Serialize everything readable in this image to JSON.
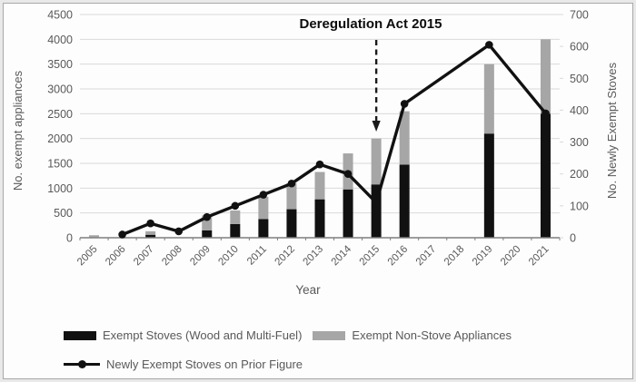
{
  "figure": {
    "annotation_label": "Deregulation Act 2015",
    "x_axis_title": "Year",
    "y_left_axis_title": "No. exempt appliances",
    "y_right_axis_title": "No. Newly Exempt Stoves"
  },
  "legend": {
    "items": [
      {
        "label": "Exempt Stoves (Wood and Multi-Fuel)",
        "swatch": "bar",
        "color": "#111111"
      },
      {
        "label": "Exempt Non-Stove Appliances",
        "swatch": "bar",
        "color": "#a6a6a6"
      },
      {
        "label": "Newly Exempt Stoves on Prior Figure",
        "swatch": "line",
        "color": "#111111"
      }
    ]
  },
  "colors": {
    "stoves_bar": "#111111",
    "nonstove_bar": "#a6a6a6",
    "line": "#111111",
    "gridline": "#d9d9d9",
    "axis_line": "#7f7f7f",
    "tick_text": "#595959",
    "annotation_arrow": "#1a1a1a"
  },
  "chart_data": {
    "type": "bar",
    "subtype": "stacked-bars-with-line-combo",
    "categories": [
      "2005",
      "2006",
      "2007",
      "2008",
      "2009",
      "2010",
      "2011",
      "2012",
      "2013",
      "2014",
      "2015",
      "2016",
      "2017",
      "2018",
      "2019",
      "2020",
      "2021"
    ],
    "series": [
      {
        "name": "Exempt Stoves (Wood and Multi-Fuel)",
        "type": "bar",
        "axis": "left",
        "color": "#111111",
        "values": [
          0,
          0,
          60,
          0,
          150,
          275,
          375,
          575,
          775,
          975,
          1075,
          1475,
          0,
          0,
          2100,
          0,
          2500
        ]
      },
      {
        "name": "Exempt Non-Stove Appliances",
        "type": "bar",
        "axis": "left",
        "stacked_on_previous": true,
        "color": "#a6a6a6",
        "values": [
          50,
          0,
          70,
          0,
          300,
          275,
          450,
          525,
          550,
          725,
          925,
          1075,
          0,
          0,
          1400,
          0,
          1500
        ]
      },
      {
        "name": "Newly Exempt Stoves on Prior Figure",
        "type": "line",
        "axis": "right",
        "color": "#111111",
        "marker": "circle",
        "values": [
          null,
          10,
          45,
          20,
          65,
          100,
          135,
          170,
          230,
          200,
          110,
          420,
          null,
          null,
          605,
          null,
          390
        ]
      }
    ],
    "left_axis": {
      "title": "No. exempt appliances",
      "min": 0,
      "max": 4500,
      "step": 500
    },
    "right_axis": {
      "title": "No. Newly Exempt Stoves",
      "min": 0,
      "max": 700,
      "step": 100
    },
    "x_title": "Year",
    "grid": "horizontal",
    "legend_position": "bottom-left",
    "annotation": {
      "text": "Deregulation Act 2015",
      "x_category": "2015",
      "arrow": "dashed-down"
    }
  }
}
